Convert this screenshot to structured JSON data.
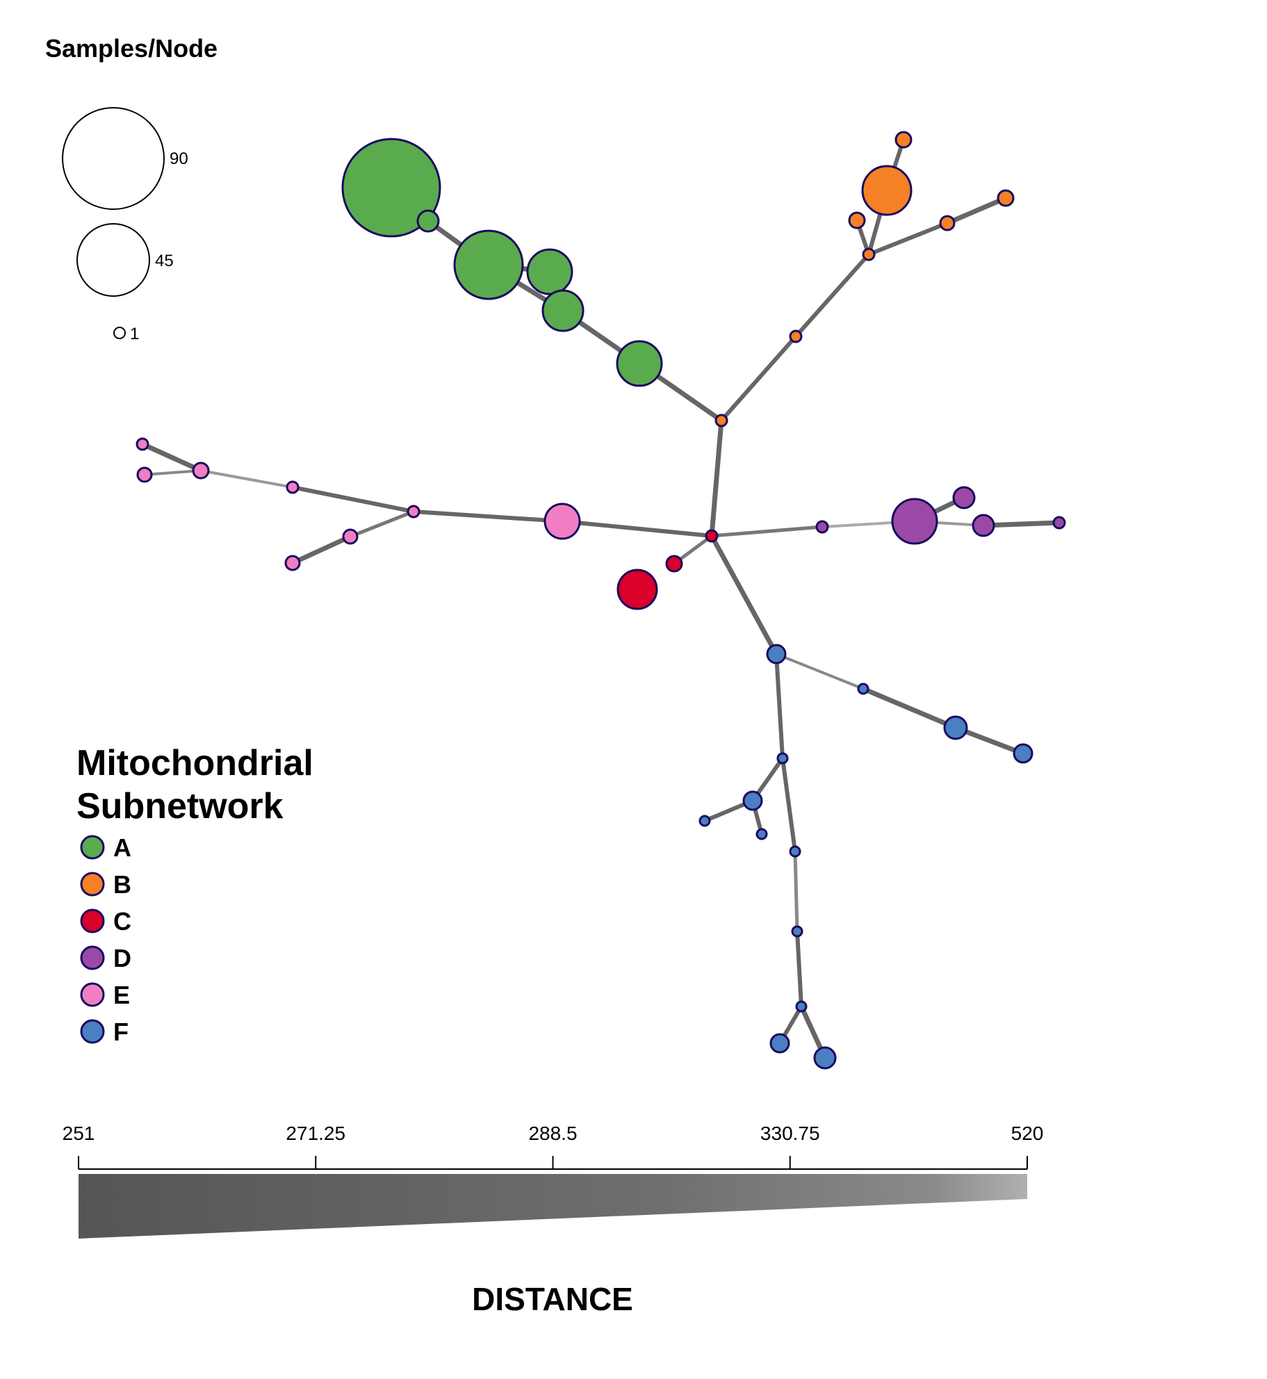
{
  "size_legend": {
    "title": "Samples/Node",
    "entries": [
      {
        "label": "90"
      },
      {
        "label": "45"
      },
      {
        "label": "1"
      }
    ]
  },
  "subnetwork_legend": {
    "title_line1": "Mitochondrial",
    "title_line2": "Subnetwork",
    "groups": [
      {
        "label": "A",
        "color": "#5aab4d"
      },
      {
        "label": "B",
        "color": "#f58025"
      },
      {
        "label": "C",
        "color": "#d9002a"
      },
      {
        "label": "D",
        "color": "#9a4aa6"
      },
      {
        "label": "E",
        "color": "#ef7fc2"
      },
      {
        "label": "F",
        "color": "#4a7fc1"
      }
    ]
  },
  "distance_scale": {
    "title": "DISTANCE",
    "ticks": [
      "251",
      "271.25",
      "288.5",
      "330.75",
      "520"
    ]
  },
  "colors": {
    "node_stroke": "#1a0a5e",
    "edge": "#666666"
  }
}
